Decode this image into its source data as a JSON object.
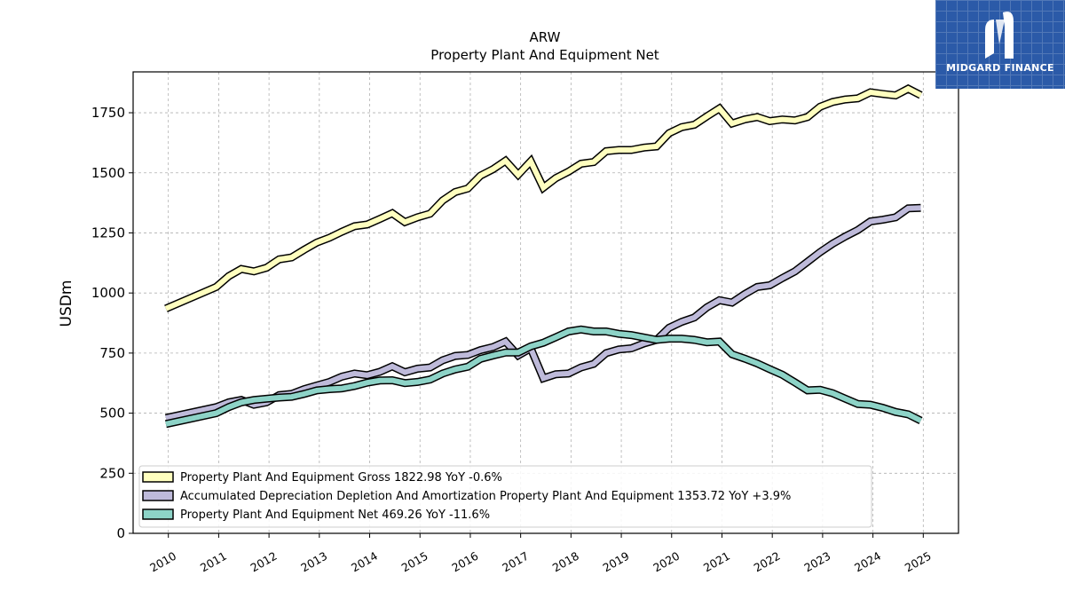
{
  "chart_data": {
    "type": "line",
    "title": "ARW",
    "subtitle": "Property Plant And Equipment Net",
    "xlabel": "",
    "ylabel": "USDm",
    "xlim": [
      2009.3,
      2025.7
    ],
    "ylim": [
      0,
      1920
    ],
    "x_ticks": [
      "2010",
      "2011",
      "2012",
      "2013",
      "2014",
      "2015",
      "2016",
      "2017",
      "2018",
      "2019",
      "2020",
      "2021",
      "2022",
      "2023",
      "2024",
      "2025"
    ],
    "y_ticks": [
      0,
      250,
      500,
      750,
      1000,
      1250,
      1500,
      1750
    ],
    "grid": true,
    "legend_position": "lower-left",
    "series": [
      {
        "name": "Property Plant And Equipment Gross",
        "legend_label": "Property Plant And Equipment Gross  1822.98 YoY -0.6%",
        "color": "#ffffbf",
        "points": [
          [
            2009.95,
            935
          ],
          [
            2010.95,
            1025
          ],
          [
            2011.2,
            1070
          ],
          [
            2011.45,
            1100
          ],
          [
            2011.7,
            1090
          ],
          [
            2011.95,
            1105
          ],
          [
            2012.2,
            1140
          ],
          [
            2012.45,
            1148
          ],
          [
            2012.7,
            1180
          ],
          [
            2012.95,
            1210
          ],
          [
            2013.2,
            1230
          ],
          [
            2013.45,
            1255
          ],
          [
            2013.7,
            1278
          ],
          [
            2013.95,
            1285
          ],
          [
            2014.2,
            1308
          ],
          [
            2014.45,
            1332
          ],
          [
            2014.7,
            1295
          ],
          [
            2014.95,
            1315
          ],
          [
            2015.2,
            1330
          ],
          [
            2015.45,
            1385
          ],
          [
            2015.7,
            1420
          ],
          [
            2015.95,
            1435
          ],
          [
            2016.2,
            1488
          ],
          [
            2016.45,
            1515
          ],
          [
            2016.7,
            1550
          ],
          [
            2016.95,
            1492
          ],
          [
            2017.2,
            1548
          ],
          [
            2017.45,
            1438
          ],
          [
            2017.7,
            1478
          ],
          [
            2017.95,
            1505
          ],
          [
            2018.2,
            1538
          ],
          [
            2018.45,
            1545
          ],
          [
            2018.7,
            1590
          ],
          [
            2018.95,
            1595
          ],
          [
            2019.2,
            1595
          ],
          [
            2019.45,
            1605
          ],
          [
            2019.7,
            1610
          ],
          [
            2019.95,
            1665
          ],
          [
            2020.2,
            1690
          ],
          [
            2020.45,
            1700
          ],
          [
            2020.7,
            1735
          ],
          [
            2020.95,
            1768
          ],
          [
            2021.2,
            1705
          ],
          [
            2021.45,
            1722
          ],
          [
            2021.7,
            1732
          ],
          [
            2021.95,
            1715
          ],
          [
            2022.2,
            1722
          ],
          [
            2022.45,
            1718
          ],
          [
            2022.7,
            1732
          ],
          [
            2022.95,
            1775
          ],
          [
            2023.2,
            1795
          ],
          [
            2023.45,
            1805
          ],
          [
            2023.7,
            1810
          ],
          [
            2023.95,
            1835
          ],
          [
            2024.2,
            1828
          ],
          [
            2024.45,
            1822
          ],
          [
            2024.7,
            1850
          ],
          [
            2024.95,
            1823
          ]
        ]
      },
      {
        "name": "Accumulated Depreciation Depletion And Amortization Property Plant And Equipment",
        "legend_label": "Accumulated Depreciation Depletion And Amortization Property Plant And Equipment  1353.72 YoY +3.9%",
        "color": "#bebada",
        "points": [
          [
            2009.95,
            480
          ],
          [
            2010.95,
            525
          ],
          [
            2011.2,
            545
          ],
          [
            2011.45,
            555
          ],
          [
            2011.7,
            535
          ],
          [
            2011.95,
            545
          ],
          [
            2012.2,
            575
          ],
          [
            2012.45,
            580
          ],
          [
            2012.7,
            600
          ],
          [
            2012.95,
            615
          ],
          [
            2013.2,
            630
          ],
          [
            2013.45,
            652
          ],
          [
            2013.7,
            665
          ],
          [
            2013.95,
            658
          ],
          [
            2014.2,
            672
          ],
          [
            2014.45,
            695
          ],
          [
            2014.7,
            670
          ],
          [
            2014.95,
            685
          ],
          [
            2015.2,
            690
          ],
          [
            2015.45,
            720
          ],
          [
            2015.7,
            738
          ],
          [
            2015.95,
            742
          ],
          [
            2016.2,
            762
          ],
          [
            2016.45,
            775
          ],
          [
            2016.7,
            798
          ],
          [
            2016.95,
            740
          ],
          [
            2017.2,
            770
          ],
          [
            2017.45,
            645
          ],
          [
            2017.7,
            662
          ],
          [
            2017.95,
            665
          ],
          [
            2018.2,
            690
          ],
          [
            2018.45,
            705
          ],
          [
            2018.7,
            750
          ],
          [
            2018.95,
            765
          ],
          [
            2019.2,
            770
          ],
          [
            2019.45,
            790
          ],
          [
            2019.7,
            805
          ],
          [
            2019.95,
            855
          ],
          [
            2020.2,
            880
          ],
          [
            2020.45,
            898
          ],
          [
            2020.7,
            940
          ],
          [
            2020.95,
            970
          ],
          [
            2021.2,
            960
          ],
          [
            2021.45,
            995
          ],
          [
            2021.7,
            1025
          ],
          [
            2021.95,
            1032
          ],
          [
            2022.2,
            1062
          ],
          [
            2022.45,
            1090
          ],
          [
            2022.7,
            1130
          ],
          [
            2022.95,
            1170
          ],
          [
            2023.2,
            1205
          ],
          [
            2023.45,
            1235
          ],
          [
            2023.7,
            1262
          ],
          [
            2023.95,
            1298
          ],
          [
            2024.2,
            1305
          ],
          [
            2024.45,
            1315
          ],
          [
            2024.7,
            1352
          ],
          [
            2024.95,
            1354
          ]
        ]
      },
      {
        "name": "Property Plant And Equipment Net",
        "legend_label": "Property Plant And Equipment Net  469.26 YoY -11.6%",
        "color": "#8dd3c7",
        "points": [
          [
            2009.95,
            455
          ],
          [
            2010.95,
            500
          ],
          [
            2011.2,
            525
          ],
          [
            2011.45,
            545
          ],
          [
            2011.7,
            555
          ],
          [
            2011.95,
            560
          ],
          [
            2012.2,
            565
          ],
          [
            2012.45,
            568
          ],
          [
            2012.7,
            580
          ],
          [
            2012.95,
            595
          ],
          [
            2013.2,
            600
          ],
          [
            2013.45,
            603
          ],
          [
            2013.7,
            613
          ],
          [
            2013.95,
            627
          ],
          [
            2014.2,
            636
          ],
          [
            2014.45,
            637
          ],
          [
            2014.7,
            625
          ],
          [
            2014.95,
            630
          ],
          [
            2015.2,
            640
          ],
          [
            2015.45,
            665
          ],
          [
            2015.7,
            682
          ],
          [
            2015.95,
            693
          ],
          [
            2016.2,
            726
          ],
          [
            2016.45,
            740
          ],
          [
            2016.7,
            752
          ],
          [
            2016.95,
            752
          ],
          [
            2017.2,
            778
          ],
          [
            2017.45,
            793
          ],
          [
            2017.7,
            816
          ],
          [
            2017.95,
            840
          ],
          [
            2018.2,
            848
          ],
          [
            2018.45,
            840
          ],
          [
            2018.7,
            840
          ],
          [
            2018.95,
            830
          ],
          [
            2019.2,
            825
          ],
          [
            2019.45,
            815
          ],
          [
            2019.7,
            805
          ],
          [
            2019.95,
            810
          ],
          [
            2020.2,
            810
          ],
          [
            2020.45,
            805
          ],
          [
            2020.7,
            795
          ],
          [
            2020.95,
            798
          ],
          [
            2021.2,
            745
          ],
          [
            2021.45,
            727
          ],
          [
            2021.7,
            707
          ],
          [
            2021.95,
            683
          ],
          [
            2022.2,
            660
          ],
          [
            2022.45,
            628
          ],
          [
            2022.7,
            595
          ],
          [
            2022.95,
            597
          ],
          [
            2023.2,
            583
          ],
          [
            2023.45,
            560
          ],
          [
            2023.7,
            538
          ],
          [
            2023.95,
            535
          ],
          [
            2024.2,
            522
          ],
          [
            2024.45,
            505
          ],
          [
            2024.7,
            495
          ],
          [
            2024.95,
            469
          ]
        ]
      }
    ]
  },
  "logo": {
    "name": "MIDGARD FINANCE"
  }
}
